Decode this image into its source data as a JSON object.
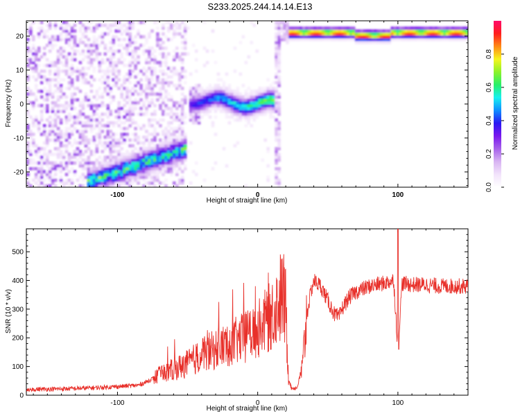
{
  "title": "S233.2025.244.14.14.E13",
  "colors": {
    "line": "#e8302a",
    "frame": "#000000",
    "colormap": [
      "#ffffff",
      "#f2e3fb",
      "#d8b4f2",
      "#a761ea",
      "#7a18ee",
      "#2a18f2",
      "#0f8fff",
      "#18f0f0",
      "#27f06a",
      "#8cf22a",
      "#f5f51e",
      "#ff8a14",
      "#ff1e1e",
      "#ff0a6a"
    ]
  },
  "chart_data": [
    {
      "type": "heatmap",
      "title": "S233.2025.244.14.14.E13",
      "xlabel": "Height of straight line (km)",
      "ylabel": "Frequency (Hz)",
      "xlim": [
        -165,
        150
      ],
      "ylim": [
        -24.5,
        24.5
      ],
      "xticks": [
        -100,
        0,
        100
      ],
      "yticks": [
        -20,
        -10,
        0,
        10,
        20
      ],
      "colorbar": {
        "label": "Normalized spectral amplitude",
        "range": [
          0.0,
          1.0
        ],
        "ticks": [
          "0.0",
          "0.2",
          "0.4",
          "0.6",
          "0.8"
        ]
      },
      "features": [
        {
          "name": "ascending streak",
          "x_range": [
            -122,
            -50
          ],
          "freq_start": -23,
          "freq_end": -13
        },
        {
          "name": "flat streak near 0 Hz",
          "x_range": [
            -48,
            13
          ],
          "freq_start": 1,
          "freq_end": 0
        },
        {
          "name": "flat streak near 21 Hz",
          "x_range": [
            22,
            150
          ],
          "freq_start": 21,
          "freq_end": 21
        }
      ]
    },
    {
      "type": "line",
      "xlabel": "Height of straight line (km)",
      "ylabel": "SNR (10 * v/v)",
      "xlim": [
        -165,
        150
      ],
      "ylim": [
        0,
        580
      ],
      "xticks": [
        -100,
        0,
        100
      ],
      "yticks": [
        0,
        100,
        200,
        300,
        400,
        500
      ],
      "series": [
        {
          "name": "SNR",
          "x": [
            -165,
            -140,
            -120,
            -100,
            -85,
            -80,
            -70,
            -60,
            -50,
            -40,
            -30,
            -20,
            -10,
            0,
            10,
            15,
            18,
            20,
            22,
            24,
            28,
            32,
            35,
            38,
            40,
            45,
            50,
            55,
            58,
            60,
            65,
            70,
            80,
            90,
            97,
            100,
            103,
            110,
            120,
            130,
            140,
            150
          ],
          "values": [
            20,
            22,
            25,
            30,
            35,
            45,
            70,
            90,
            110,
            140,
            160,
            180,
            200,
            230,
            280,
            330,
            350,
            300,
            60,
            25,
            25,
            100,
            280,
            360,
            400,
            380,
            330,
            280,
            270,
            300,
            340,
            360,
            380,
            390,
            400,
            160,
            390,
            385,
            385,
            380,
            380,
            380
          ]
        }
      ]
    }
  ]
}
